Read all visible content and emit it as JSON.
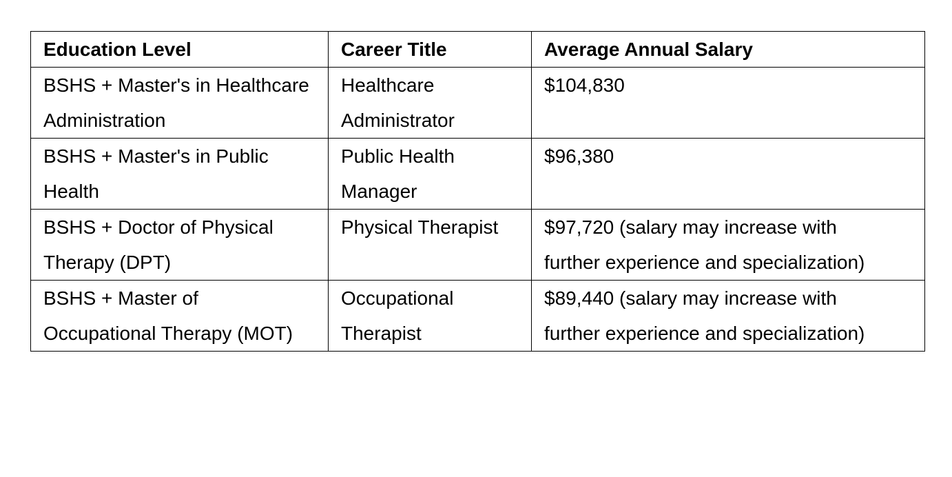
{
  "table": {
    "header": [
      "Education Level",
      "Career Title",
      "Average Annual Salary"
    ],
    "rows": [
      [
        "BSHS + Master's in Healthcare Administration",
        "Healthcare Administrator",
        "$104,830"
      ],
      [
        "BSHS + Master's in Public Health",
        "Public Health Manager",
        "$96,380"
      ],
      [
        "BSHS + Doctor of Physical Therapy (DPT)",
        "Physical Therapist",
        "$97,720 (salary may increase with further experience and specialization)"
      ],
      [
        "BSHS + Master of Occupational Therapy (MOT)",
        "Occupational Therapist",
        "$89,440 (salary may increase with further experience and specialization)"
      ]
    ]
  }
}
